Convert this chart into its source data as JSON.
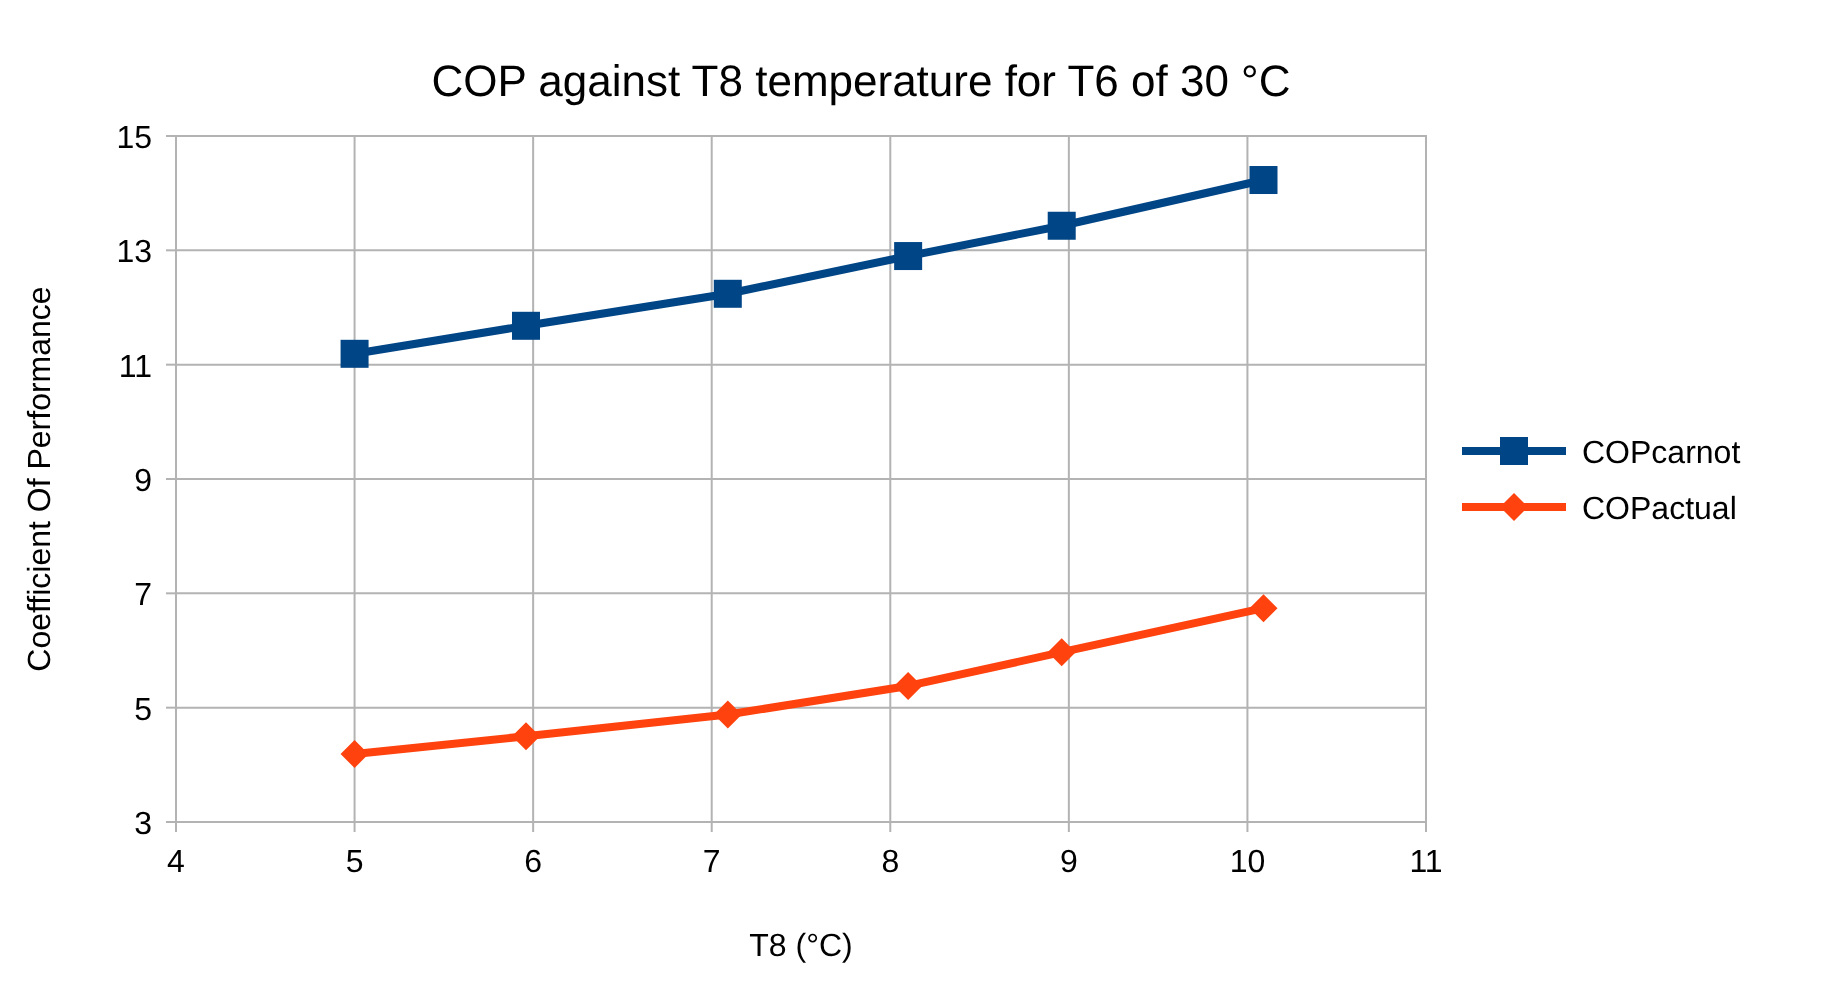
{
  "chart_data": {
    "type": "line",
    "title": "COP against T8 temperature for T6 of 30 °C",
    "xlabel": "T8 (°C)",
    "ylabel": "Coefficient Of Performance",
    "x": [
      5,
      5.96,
      7.09,
      8.1,
      8.96,
      10.09
    ],
    "series": [
      {
        "name": "COPcarnot",
        "color": "#004586",
        "marker": "square",
        "values": [
          11.19,
          11.68,
          12.24,
          12.9,
          13.43,
          14.23
        ]
      },
      {
        "name": "COPactual",
        "color": "#ff420e",
        "marker": "diamond",
        "values": [
          4.19,
          4.5,
          4.88,
          5.38,
          5.97,
          6.74
        ]
      }
    ],
    "xlim": [
      4,
      11
    ],
    "xticks": [
      4,
      5,
      6,
      7,
      8,
      9,
      10,
      11
    ],
    "ylim": [
      3,
      15
    ],
    "yticks": [
      3,
      5,
      7,
      9,
      11,
      13,
      15
    ],
    "grid": true,
    "legend": "right"
  }
}
